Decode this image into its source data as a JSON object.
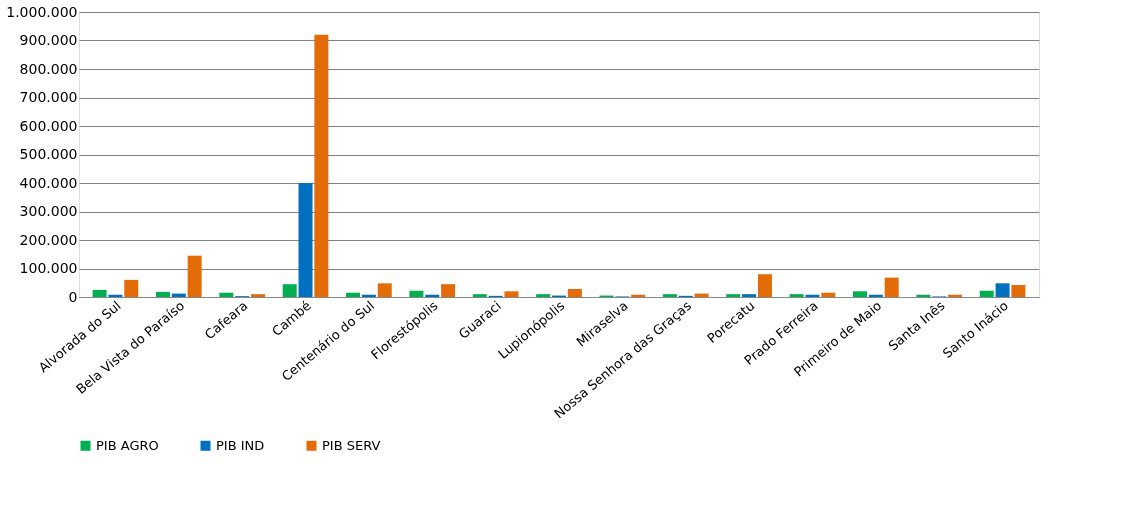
{
  "chart_data": {
    "type": "bar",
    "categories": [
      "Alvorada do Sul",
      "Bela Vista do Paraíso",
      "Cafeara",
      "Cambé",
      "Centenário do Sul",
      "Florestópolis",
      "Guaraci",
      "Lupionópolis",
      "Miraselva",
      "Nossa Senhora das Graças",
      "Porecatu",
      "Prado Ferreira",
      "Primeiro de Maio",
      "Santa Inês",
      "Santo Inácio"
    ],
    "series": [
      {
        "name": "PIB AGRO",
        "color": "#00b050",
        "values": [
          25000,
          18000,
          15000,
          45000,
          15000,
          22000,
          10000,
          10000,
          5000,
          10000,
          10000,
          10000,
          20000,
          8000,
          22000
        ]
      },
      {
        "name": "PIB IND",
        "color": "#0070c0",
        "values": [
          8000,
          12000,
          3000,
          400000,
          8000,
          8000,
          4000,
          5000,
          2000,
          4000,
          10000,
          8000,
          8000,
          2000,
          48000
        ]
      },
      {
        "name": "PIB SERV",
        "color": "#e36c09",
        "values": [
          60000,
          145000,
          10000,
          920000,
          48000,
          45000,
          20000,
          28000,
          8000,
          12000,
          80000,
          15000,
          68000,
          8000,
          42000
        ]
      }
    ],
    "ylim": [
      0,
      1000000
    ],
    "yticks": [
      0,
      {
        "value": 100000,
        "label": "100.000"
      },
      {
        "value": 200000,
        "label": "200.000"
      },
      {
        "value": 300000,
        "label": "300.000"
      },
      {
        "value": 400000,
        "label": "400.000"
      },
      {
        "value": 500000,
        "label": "500.000"
      },
      {
        "value": 600000,
        "label": "600.000"
      },
      {
        "value": 700000,
        "label": "700.000"
      },
      {
        "value": 800000,
        "label": "800.000"
      },
      {
        "value": 900000,
        "label": "900.000"
      },
      {
        "value": 1000000,
        "label": "1.000.000"
      }
    ],
    "grid": "y",
    "legend": "bottom"
  }
}
